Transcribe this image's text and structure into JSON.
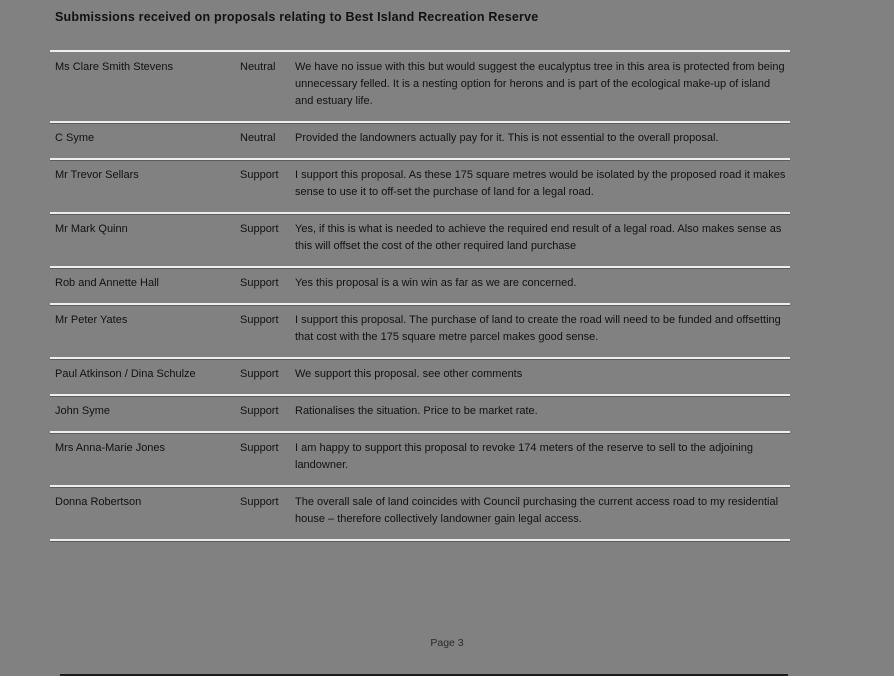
{
  "page": {
    "title": "Submissions received on proposals relating to Best Island Recreation Reserve",
    "footer": "Page 3"
  },
  "table": {
    "rows": [
      {
        "name": "Ms Clare Smith Stevens",
        "stance": "Neutral",
        "comment": "We have no issue with this but would suggest the eucalyptus tree in this area is protected from being unnecessary felled. It is a nesting option for herons and is part of the ecological make-up of island and estuary life."
      },
      {
        "name": "C Syme",
        "stance": "Neutral",
        "comment": "Provided the landowners actually pay for it.  This is not essential to the overall proposal."
      },
      {
        "name": "Mr Trevor Sellars",
        "stance": "Support",
        "comment": "I support this proposal.  As these 175 square metres would be isolated by the proposed road it makes sense to use it to off-set the purchase of land for a legal road."
      },
      {
        "name": "Mr Mark Quinn",
        "stance": "Support",
        "comment": "Yes, if this is what is needed to achieve the required end result of a legal road. Also makes sense as this will offset the cost of the other required land purchase"
      },
      {
        "name": "Rob and Annette Hall",
        "stance": "Support",
        "comment": "Yes this proposal is a win win as far as we are concerned."
      },
      {
        "name": "Mr Peter Yates",
        "stance": "Support",
        "comment": "I support this proposal.  The purchase of land to create the road will need to be funded and offsetting that cost with the 175 square metre parcel makes good sense."
      },
      {
        "name": "Paul Atkinson / Dina Schulze",
        "stance": "Support",
        "comment": "We support this proposal. see other comments"
      },
      {
        "name": "John Syme",
        "stance": "Support",
        "comment": "Rationalises the situation. Price to be market rate."
      },
      {
        "name": "Mrs Anna-Marie Jones",
        "stance": "Support",
        "comment": "I am happy to support this proposal to revoke 174 meters of the reserve to sell to the adjoining landowner."
      },
      {
        "name": "Donna Robertson",
        "stance": "Support",
        "comment": "The overall sale of land coincides with Council purchasing the current access road to my residential house – therefore collectively landowner gain legal access."
      }
    ]
  },
  "colors": {
    "background": "#818181",
    "text": "#111111",
    "separator_light": "#ededed",
    "separator_dark": "#5c5c5c",
    "bottom_edge": "#1c1c1c"
  }
}
